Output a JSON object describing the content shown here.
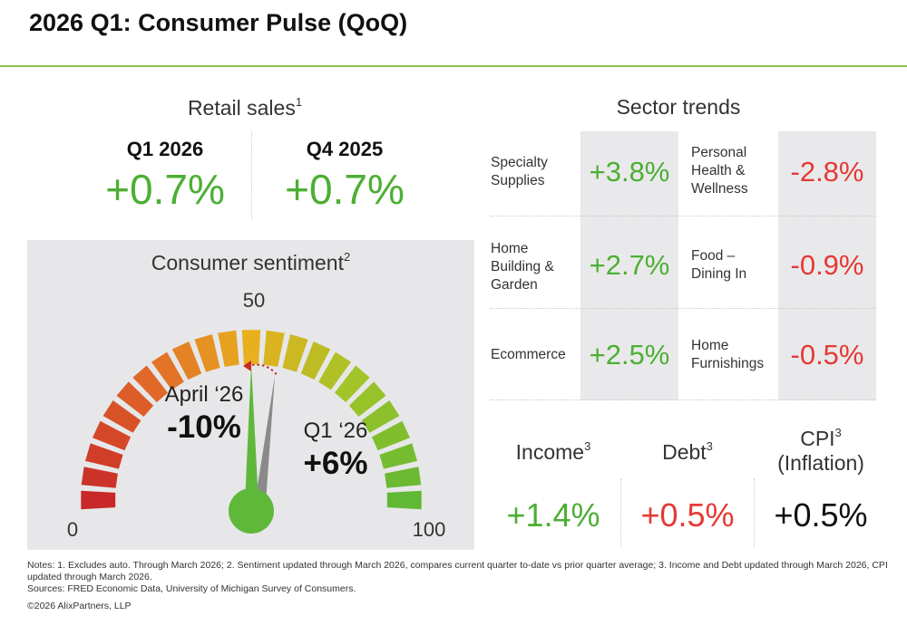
{
  "header": {
    "title": "2026 Q1: Consumer Pulse (QoQ)"
  },
  "retail_sales": {
    "heading": "Retail sales",
    "footnote": "1",
    "columns": [
      {
        "period": "Q1 2026",
        "value": "+0.7%"
      },
      {
        "period": "Q4 2025",
        "value": "+0.7%"
      }
    ]
  },
  "sentiment": {
    "heading": "Consumer sentiment",
    "footnote": "2",
    "scale_min": "0",
    "scale_mid": "50",
    "scale_max": "100",
    "april": {
      "label": "April ‘26",
      "value": "-10%"
    },
    "q1": {
      "label": "Q1 ‘26",
      "value": "+6%"
    },
    "colors": {
      "needle_current": "#5fb83a",
      "needle_prior": "#8a8a8a",
      "arrow": "#c62828"
    }
  },
  "sector_trends": {
    "heading": "Sector trends",
    "rows": [
      {
        "left": {
          "name": "Specialty Supplies",
          "value": "+3.8%"
        },
        "right": {
          "name": "Personal Health & Wellness",
          "value": "-2.8%"
        }
      },
      {
        "left": {
          "name": "Home Building & Garden",
          "value": "+2.7%"
        },
        "right": {
          "name": "Food – Dining In",
          "value": "-0.9%"
        }
      },
      {
        "left": {
          "name": "Ecommerce",
          "value": "+2.5%"
        },
        "right": {
          "name": "Home Furnishings",
          "value": "-0.5%"
        }
      }
    ]
  },
  "indicators": [
    {
      "label": "Income",
      "footnote": "3",
      "sub": "",
      "value": "+1.4%",
      "color": "#4caf33"
    },
    {
      "label": "Debt",
      "footnote": "3",
      "sub": "",
      "value": "+0.5%",
      "color": "#e53935"
    },
    {
      "label": "CPI",
      "footnote": "3",
      "sub": "(Inflation)",
      "value": "+0.5%",
      "color": "#111111"
    }
  ],
  "notes": {
    "line1": "Notes: 1. Excludes auto. Through March 2026; 2. Sentiment updated through March 2026, compares current quarter to-date vs prior quarter average; 3. Income and Debt updated through March 2026, CPI updated through March 2026.",
    "line2": "Sources: FRED Economic Data, University of Michigan Survey of Consumers.",
    "copyright": "©2026 AlixPartners, LLP"
  },
  "chart_data": [
    {
      "type": "table",
      "title": "Retail sales",
      "columns": [
        "Q1 2026",
        "Q4 2025"
      ],
      "values": [
        0.7,
        0.7
      ],
      "unit": "%"
    },
    {
      "type": "gauge",
      "title": "Consumer sentiment",
      "range": [
        0,
        100
      ],
      "tick_labels": [
        "0",
        "50",
        "100"
      ],
      "series": [
        {
          "name": "Q1 ‘26",
          "value": 6,
          "unit": "%"
        },
        {
          "name": "April ‘26",
          "value": -10,
          "unit": "%"
        }
      ]
    },
    {
      "type": "table",
      "title": "Sector trends",
      "categories": [
        "Specialty Supplies",
        "Home Building & Garden",
        "Ecommerce",
        "Personal Health & Wellness",
        "Food – Dining In",
        "Home Furnishings"
      ],
      "values": [
        3.8,
        2.7,
        2.5,
        -2.8,
        -0.9,
        -0.5
      ],
      "unit": "%"
    },
    {
      "type": "table",
      "categories": [
        "Income",
        "Debt",
        "CPI (Inflation)"
      ],
      "values": [
        1.4,
        0.5,
        0.5
      ],
      "unit": "%"
    }
  ]
}
